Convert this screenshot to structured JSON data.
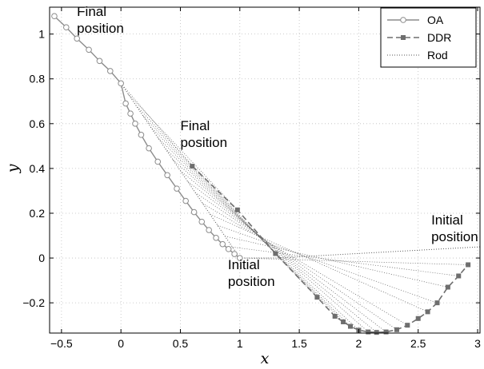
{
  "chart_data": {
    "type": "line",
    "xlabel": "x",
    "ylabel": "y",
    "xlim": [
      -0.6,
      3.02
    ],
    "ylim": [
      -0.335,
      1.12
    ],
    "xticks": [
      -0.5,
      0,
      0.5,
      1,
      1.5,
      2,
      2.5,
      3
    ],
    "xtick_labels": [
      "−0.5",
      "0",
      "0.5",
      "1",
      "1.5",
      "2",
      "2.5",
      "3"
    ],
    "yticks": [
      -0.2,
      0,
      0.2,
      0.4,
      0.6,
      0.8,
      1
    ],
    "ytick_labels": [
      "−0.2",
      "0",
      "0.2",
      "0.4",
      "0.6",
      "0.8",
      "1"
    ],
    "grid": true,
    "legend_position": "top-right",
    "series": [
      {
        "name": "OA",
        "style": "circle-line",
        "color": "#8c8c8c",
        "x": [
          1.0,
          0.955,
          0.905,
          0.855,
          0.8,
          0.74,
          0.68,
          0.615,
          0.545,
          0.47,
          0.39,
          0.31,
          0.235,
          0.17,
          0.12,
          0.08,
          0.04,
          0.0,
          -0.09,
          -0.18,
          -0.27,
          -0.37,
          -0.46,
          -0.56
        ],
        "y": [
          0.0,
          0.018,
          0.04,
          0.062,
          0.09,
          0.125,
          0.162,
          0.205,
          0.255,
          0.31,
          0.37,
          0.43,
          0.49,
          0.55,
          0.6,
          0.645,
          0.69,
          0.78,
          0.835,
          0.88,
          0.93,
          0.98,
          1.03,
          1.08
        ]
      },
      {
        "name": "DDR",
        "style": "square-dash",
        "color": "#6e6e6e",
        "x": [
          0.6,
          0.98,
          1.3,
          1.65,
          1.8,
          1.87,
          1.93,
          2.0,
          2.08,
          2.15,
          2.23,
          2.32,
          2.41,
          2.5,
          2.58,
          2.66,
          2.75,
          2.84,
          2.92
        ],
        "y": [
          0.41,
          0.215,
          0.02,
          -0.175,
          -0.26,
          -0.285,
          -0.305,
          -0.322,
          -0.33,
          -0.332,
          -0.33,
          -0.32,
          -0.3,
          -0.27,
          -0.24,
          -0.2,
          -0.13,
          -0.08,
          -0.03
        ]
      },
      {
        "name": "Rod",
        "style": "dotted",
        "color": "#555555",
        "x": [
          0.0,
          1.0,
          1.3,
          3.02
        ],
        "y": [
          0.78,
          0.0,
          0.0,
          0.05
        ]
      }
    ],
    "annotations": [
      {
        "lines": [
          "Final",
          "position"
        ],
        "x": -0.37,
        "y": 1.08
      },
      {
        "lines": [
          "Final",
          "position"
        ],
        "x": 0.5,
        "y": 0.57
      },
      {
        "lines": [
          "Initial",
          "position"
        ],
        "x": 0.9,
        "y": -0.05
      },
      {
        "lines": [
          "Initial",
          "position"
        ],
        "x": 2.61,
        "y": 0.15
      }
    ]
  }
}
